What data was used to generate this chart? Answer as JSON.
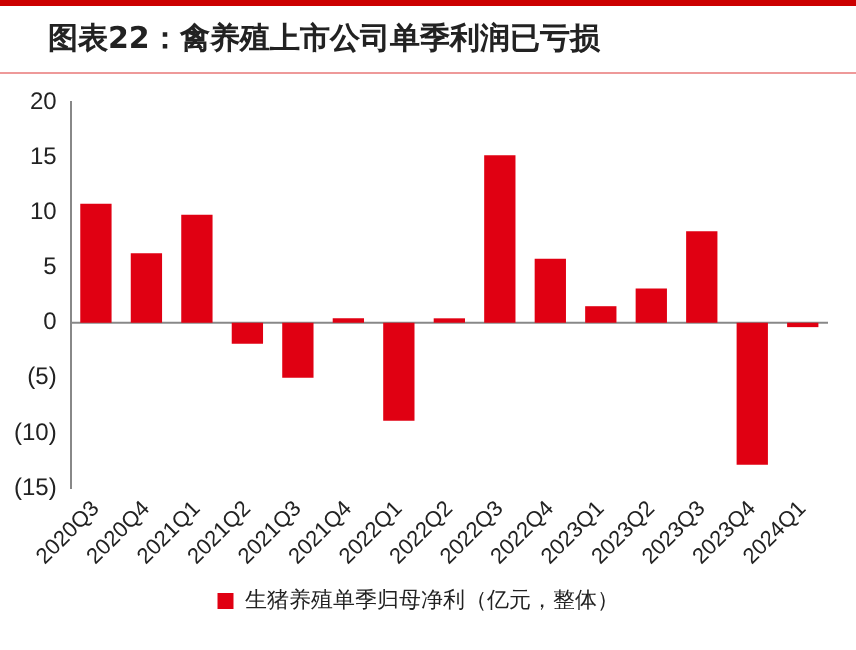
{
  "chart_data": {
    "type": "bar",
    "title": "图表22：禽养殖上市公司单季利润已亏损",
    "categories": [
      "2020Q3",
      "2020Q4",
      "2021Q1",
      "2021Q2",
      "2021Q3",
      "2021Q4",
      "2022Q1",
      "2022Q2",
      "2022Q3",
      "2022Q4",
      "2023Q1",
      "2023Q2",
      "2023Q3",
      "2023Q4",
      "2024Q1"
    ],
    "series": [
      {
        "name": "生猪养殖单季归母净利（亿元，整体）",
        "color": "#e00012",
        "values": [
          10.8,
          6.3,
          9.8,
          -1.9,
          -5.0,
          0.4,
          -8.9,
          0.4,
          15.2,
          5.8,
          1.5,
          3.1,
          8.3,
          -12.9,
          -0.4
        ]
      }
    ],
    "ylim": [
      -15,
      20
    ],
    "yticks": [
      {
        "value": -15,
        "label": "(15)"
      },
      {
        "value": -10,
        "label": "(10)"
      },
      {
        "value": -5,
        "label": "(5)"
      },
      0,
      5,
      10,
      15,
      20
    ],
    "ref_lines": [
      {
        "axis": "y",
        "value": 0,
        "color": "#888888"
      }
    ],
    "grid": false,
    "legend": "bottom"
  }
}
